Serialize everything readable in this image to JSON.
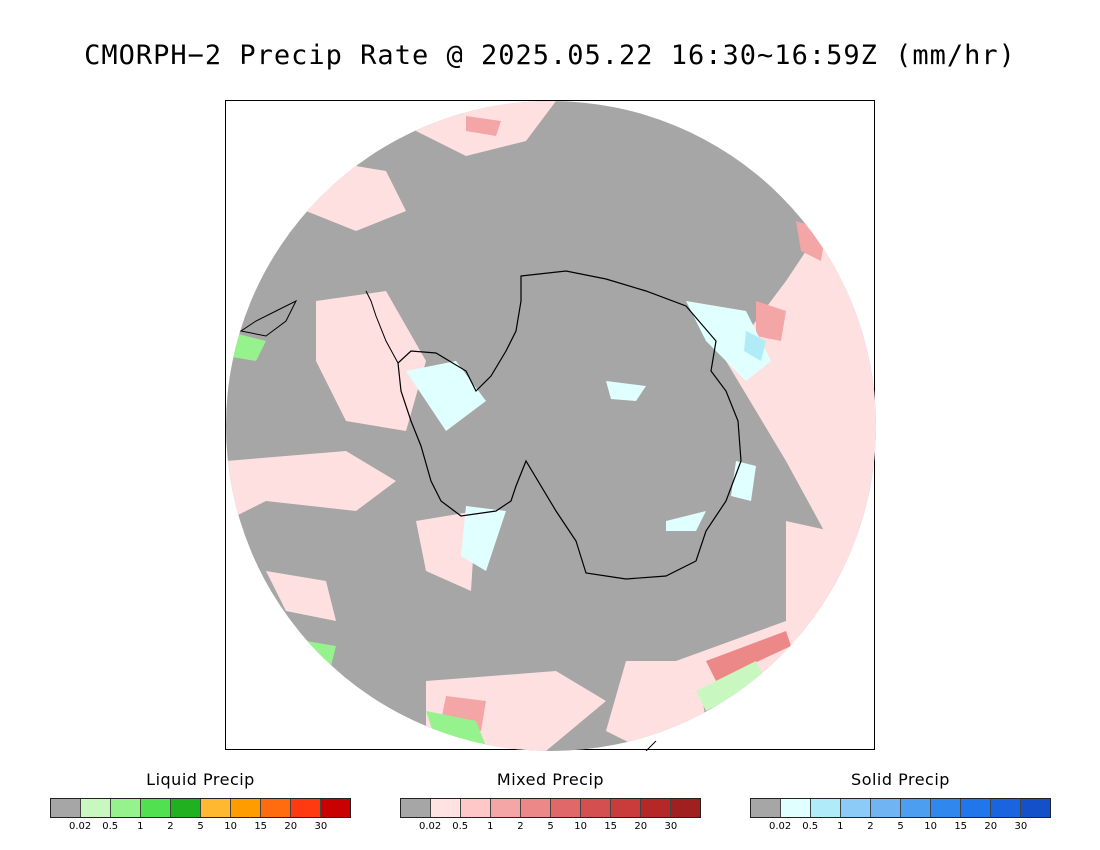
{
  "title": "CMORPH−2 Precip Rate @ 2025.05.22 16:30~16:59Z (mm/hr)",
  "legends": [
    {
      "title": "Liquid Precip",
      "colors": [
        "#a6a6a6",
        "#c8f8c0",
        "#96f28c",
        "#50e050",
        "#20b020",
        "#ffb830",
        "#ff9c00",
        "#ff6c10",
        "#ff3a10",
        "#c80000"
      ],
      "ticks": [
        "0.02",
        "0.5",
        "1",
        "2",
        "5",
        "10",
        "15",
        "20",
        "30"
      ]
    },
    {
      "title": "Mixed Precip",
      "colors": [
        "#a6a6a6",
        "#ffe2e2",
        "#ffc8c8",
        "#f4a6a6",
        "#ec8888",
        "#e06868",
        "#d45050",
        "#c83c3c",
        "#b42828",
        "#a02020"
      ],
      "ticks": [
        "0.02",
        "0.5",
        "1",
        "2",
        "5",
        "10",
        "15",
        "20",
        "30"
      ]
    },
    {
      "title": "Solid Precip",
      "colors": [
        "#a6a6a6",
        "#e0ffff",
        "#b0ecf8",
        "#8ccaf8",
        "#70b4f4",
        "#4c9ef0",
        "#3088ee",
        "#2076ea",
        "#1a64e0",
        "#1450c8"
      ],
      "ticks": [
        "0.02",
        "0.5",
        "1",
        "2",
        "5",
        "10",
        "15",
        "20",
        "30"
      ]
    }
  ]
}
